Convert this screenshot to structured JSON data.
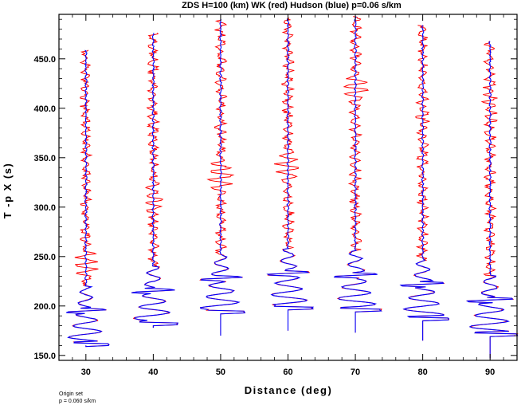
{
  "chart_data": {
    "type": "line",
    "title": "ZDS H=100 (km) WK (red) Hudson (blue) p=0.06 s/km",
    "xlabel": "Distance (deg)",
    "ylabel": "T -p X (s)",
    "xlim": [
      26,
      94
    ],
    "ylim": [
      145,
      495
    ],
    "x_ticks": [
      30,
      40,
      50,
      60,
      70,
      80,
      90
    ],
    "x_tick_labels": [
      "30",
      "40",
      "50",
      "60",
      "70",
      "80",
      "90"
    ],
    "y_ticks": [
      150,
      200,
      250,
      300,
      350,
      400,
      450
    ],
    "y_tick_labels": [
      "150.0",
      "200.0",
      "250.0",
      "300.0",
      "350.0",
      "400.0",
      "450.0"
    ],
    "grid": false,
    "legend": "none (colors described in title)",
    "series": [
      {
        "name": "WK",
        "color": "#ff0000"
      },
      {
        "name": "Hudson",
        "color": "#0000ff"
      }
    ],
    "traces": [
      {
        "distance": 30,
        "t_start": 160,
        "t_end": 459,
        "first_arrival": 160,
        "secondary_arrival": 195,
        "large_amplitude_deg": 3.0
      },
      {
        "distance": 40,
        "t_start": 178,
        "t_end": 477,
        "first_arrival": 181,
        "secondary_arrival": 215,
        "large_amplitude_deg": 3.2
      },
      {
        "distance": 50,
        "t_start": 170,
        "t_end": 490,
        "first_arrival": 193,
        "secondary_arrival": 228,
        "large_amplitude_deg": 3.2
      },
      {
        "distance": 60,
        "t_start": 175,
        "t_end": 492,
        "first_arrival": 197,
        "secondary_arrival": 233,
        "large_amplitude_deg": 3.3
      },
      {
        "distance": 70,
        "t_start": 173,
        "t_end": 493,
        "first_arrival": 195,
        "secondary_arrival": 231,
        "large_amplitude_deg": 3.4
      },
      {
        "distance": 80,
        "t_start": 165,
        "t_end": 484,
        "first_arrival": 186,
        "secondary_arrival": 222,
        "large_amplitude_deg": 3.4
      },
      {
        "distance": 90,
        "t_start": 147,
        "t_end": 468,
        "first_arrival": 170,
        "secondary_arrival": 206,
        "large_amplitude_deg": 3.6
      }
    ]
  },
  "footer": {
    "line1": "Origin set",
    "line2": "p = 0.060 s/km"
  }
}
